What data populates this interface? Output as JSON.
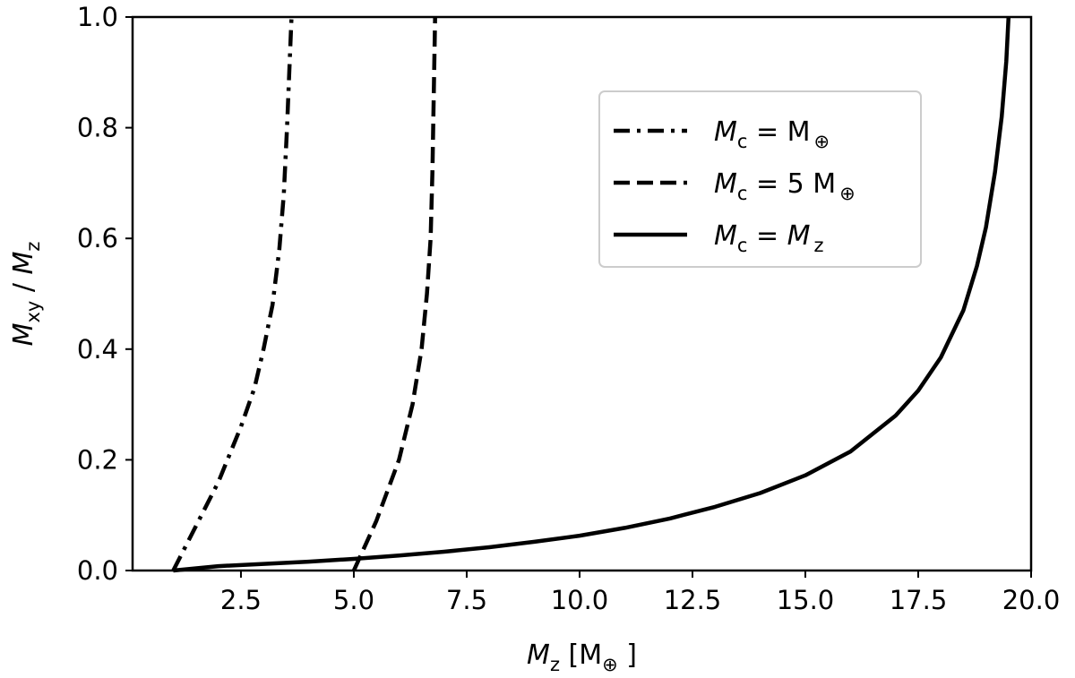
{
  "chart_data": {
    "type": "line",
    "xlabel": {
      "symbol": "M",
      "sub": "z",
      "unit_open": " [M",
      "unit_sym": "⊕",
      "unit_close": " ]"
    },
    "ylabel": {
      "num_symbol": "M",
      "num_sub": "xy",
      "sep": " / ",
      "den_symbol": "M",
      "den_sub": "z"
    },
    "xlim": [
      0.1,
      20.0
    ],
    "ylim": [
      0.0,
      1.0
    ],
    "xticks": [
      2.5,
      5.0,
      7.5,
      10.0,
      12.5,
      15.0,
      17.5,
      20.0
    ],
    "xtick_labels": [
      "2.5",
      "5.0",
      "7.5",
      "10.0",
      "12.5",
      "15.0",
      "17.5",
      "20.0"
    ],
    "yticks": [
      0.0,
      0.2,
      0.4,
      0.6,
      0.8,
      1.0
    ],
    "ytick_labels": [
      "0.0",
      "0.2",
      "0.4",
      "0.6",
      "0.8",
      "1.0"
    ],
    "grid": false,
    "legend_position": "upper-right",
    "series": [
      {
        "legend": {
          "lhs_sym": "M",
          "lhs_sub": "c",
          "eq": " = ",
          "rhs_num": "",
          "rhs_sym": "M",
          "rhs_sub": "⊕",
          "rhs_sub_italic": false
        },
        "style": "dash-dot",
        "x": [
          1.0,
          1.5,
          2.0,
          2.5,
          2.8,
          3.0,
          3.2,
          3.35,
          3.45,
          3.52,
          3.58,
          3.62
        ],
        "y": [
          0.0,
          0.08,
          0.16,
          0.26,
          0.33,
          0.4,
          0.48,
          0.58,
          0.68,
          0.8,
          0.92,
          1.0
        ]
      },
      {
        "legend": {
          "lhs_sym": "M",
          "lhs_sub": "c",
          "eq": " = ",
          "rhs_num": "5 ",
          "rhs_sym": "M",
          "rhs_sub": "⊕",
          "rhs_sub_italic": false
        },
        "style": "dashed",
        "x": [
          5.0,
          5.5,
          6.0,
          6.3,
          6.5,
          6.62,
          6.7,
          6.74,
          6.77,
          6.8
        ],
        "y": [
          0.0,
          0.09,
          0.2,
          0.3,
          0.4,
          0.5,
          0.6,
          0.72,
          0.86,
          1.0
        ]
      },
      {
        "legend": {
          "lhs_sym": "M",
          "lhs_sub": "c",
          "eq": " = ",
          "rhs_num": "",
          "rhs_sym": "M",
          "rhs_sub": "z",
          "rhs_sub_italic": true
        },
        "style": "solid",
        "x": [
          1.0,
          2.0,
          3.0,
          4.0,
          5.0,
          6.0,
          7.0,
          8.0,
          9.0,
          10.0,
          11.0,
          12.0,
          13.0,
          14.0,
          15.0,
          16.0,
          17.0,
          17.5,
          18.0,
          18.5,
          18.8,
          19.0,
          19.2,
          19.35,
          19.45,
          19.5
        ],
        "y": [
          0.0,
          0.008,
          0.012,
          0.016,
          0.021,
          0.027,
          0.034,
          0.042,
          0.052,
          0.063,
          0.077,
          0.094,
          0.115,
          0.14,
          0.172,
          0.215,
          0.28,
          0.325,
          0.385,
          0.47,
          0.55,
          0.62,
          0.72,
          0.82,
          0.92,
          1.0
        ]
      }
    ]
  }
}
